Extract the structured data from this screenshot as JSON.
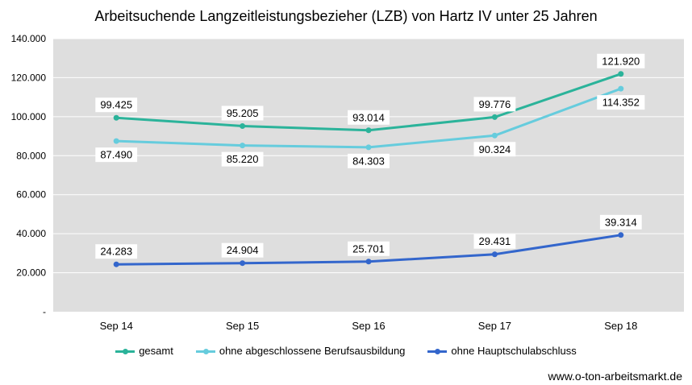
{
  "chart_data": {
    "type": "line",
    "title": "Arbeitsuchende Langzeitleistungsbezieher (LZB) von Hartz  IV unter 25 Jahren",
    "categories": [
      "Sep 14",
      "Sep 15",
      "Sep 16",
      "Sep 17",
      "Sep 18"
    ],
    "ylim": [
      0,
      140000
    ],
    "y_ticks": [
      {
        "value": 0,
        "label": "-"
      },
      {
        "value": 20000,
        "label": "20.000"
      },
      {
        "value": 40000,
        "label": "40.000"
      },
      {
        "value": 60000,
        "label": "60.000"
      },
      {
        "value": 80000,
        "label": "80.000"
      },
      {
        "value": 100000,
        "label": "100.000"
      },
      {
        "value": 120000,
        "label": "120.000"
      },
      {
        "value": 140000,
        "label": "140.000"
      }
    ],
    "grid": true,
    "legend_position": "bottom",
    "series": [
      {
        "name": "gesamt",
        "color": "#2bb39a",
        "label_side": "above",
        "values": [
          99425,
          95205,
          93014,
          99776,
          121920
        ],
        "labels": [
          "99.425",
          "95.205",
          "93.014",
          "99.776",
          "121.920"
        ]
      },
      {
        "name": "ohne abgeschlossene Berufsausbildung",
        "color": "#66ccdd",
        "label_side": "below",
        "values": [
          87490,
          85220,
          84303,
          90324,
          114352
        ],
        "labels": [
          "87.490",
          "85.220",
          "84.303",
          "90.324",
          "114.352"
        ]
      },
      {
        "name": "ohne Hauptschulabschluss",
        "color": "#3366cc",
        "label_side": "above",
        "values": [
          24283,
          24904,
          25701,
          29431,
          39314
        ],
        "labels": [
          "24.283",
          "24.904",
          "25.701",
          "29.431",
          "39.314"
        ]
      }
    ]
  },
  "source": "www.o-ton-arbeitsmarkt.de"
}
